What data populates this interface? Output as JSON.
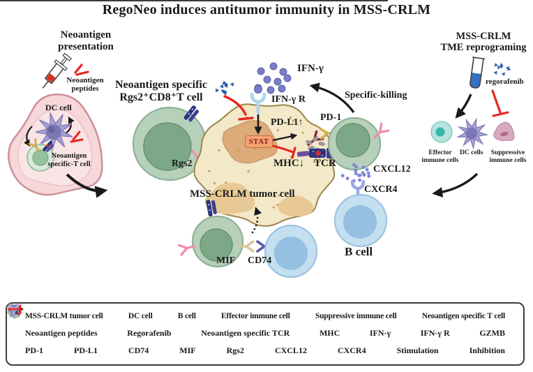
{
  "title": "RegoNeo induces antitumor immunity in MSS-CRLM",
  "left_panel": {
    "heading_line1": "Neoantigen",
    "heading_line2": "presentation",
    "peptides_line1": "Neoantigen",
    "peptides_line2": "peptides",
    "dc_cell": "DC cell",
    "t_cell_line1": "Neoantigen",
    "t_cell_line2": "specific-T cell"
  },
  "center_panel": {
    "tcell_heading_line1": "Neoantigen specific",
    "tcell_heading_line2": "Rgs2⁺CD8⁺T cell",
    "rgs2": "Rgs2",
    "ifn_gamma": "IFN-γ",
    "ifn_gamma_r": "IFN-γ R",
    "stat": "STAT",
    "pd_l1": "PD-L1↑",
    "pd_1": "PD-1",
    "mhc": "MHC↓",
    "tcr": "TCR",
    "specific_killing": "Specific-killing",
    "tumor": "MSS-CRLM tumor cell",
    "mif": "MIF",
    "cd74": "CD74",
    "cxcl12": "CXCL12",
    "cxcr4": "CXCR4",
    "b_cell": "B cell"
  },
  "right_panel": {
    "heading_line1": "MSS-CRLM",
    "heading_line2": "TME reprograming",
    "regorafenib": "regorafenib",
    "effector_line1": "Effector",
    "effector_line2": "immune cells",
    "dc_cells": "DC cells",
    "suppressive_line1": "Suppressive",
    "suppressive_line2": "immune cells"
  },
  "legend": {
    "row1": [
      {
        "icon": "tumor-cell-icon",
        "label": "MSS-CRLM tumor cell"
      },
      {
        "icon": "dc-cell-icon",
        "label": "DC cell"
      },
      {
        "icon": "b-cell-icon",
        "label": "B cell"
      },
      {
        "icon": "effector-cell-icon",
        "label": "Effector immune cell"
      },
      {
        "icon": "suppressive-cell-icon",
        "label": "Suppressive immune cell"
      },
      {
        "icon": "t-cell-icon",
        "label": "Neoantigen specific T cell"
      }
    ],
    "row2": [
      {
        "icon": "neoantigen-peptides-icon",
        "label": "Neoantigen peptides"
      },
      {
        "icon": "regorafenib-icon",
        "label": "Regorafenib"
      },
      {
        "icon": "neoantigen-tcr-icon",
        "label": "Neoantigen specific TCR"
      },
      {
        "icon": "mhc-icon",
        "label": "MHC"
      },
      {
        "icon": "ifn-gamma-icon",
        "label": "IFN-γ"
      },
      {
        "icon": "ifn-gamma-r-icon",
        "label": "IFN-γ R"
      },
      {
        "icon": "gzmb-icon",
        "label": "GZMB"
      }
    ],
    "row3": [
      {
        "icon": "pd-1-icon",
        "label": "PD-1"
      },
      {
        "icon": "pd-l1-icon",
        "label": "PD-L1"
      },
      {
        "icon": "cd74-icon",
        "label": "CD74"
      },
      {
        "icon": "mif-icon",
        "label": "MIF"
      },
      {
        "icon": "rgs2-icon",
        "label": "Rgs2"
      },
      {
        "icon": "cxcl12-icon",
        "label": "CXCL12"
      },
      {
        "icon": "cxcr4-icon",
        "label": "CXCR4"
      },
      {
        "icon": "stimulation-icon",
        "label": "Stimulation"
      },
      {
        "icon": "inhibition-icon",
        "label": "Inhibition"
      }
    ]
  },
  "colors": {
    "inhibition_red": "#e8261f",
    "stimulation_black": "#1a1a1a",
    "tumor_fill": "#f3e8c8",
    "t_cell_fill": "#b7d0ba",
    "b_cell_fill": "#c3dff0",
    "dc_cell_fill": "#a8a2d4",
    "effector_fill": "#b5e3dd",
    "suppressive_fill": "#d7aabe",
    "lymph_node_fill": "#f6d7da",
    "ifn_gamma_dot": "#7a7ec9",
    "regorafenib_blue": "#2b5fad",
    "stat_box": "#f2a472"
  }
}
